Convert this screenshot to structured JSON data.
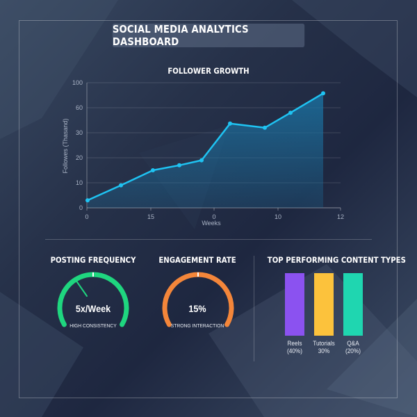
{
  "header": {
    "title": "SOCIAL MEDIA ANALYTICS DASHBOARD"
  },
  "chart_data": [
    {
      "type": "area",
      "title": "FOLLOWER GROWTH",
      "xlabel": "Weeks",
      "ylabel": "Followes (Thasand)",
      "x_tick_labels": [
        "0",
        "15",
        "0",
        "10",
        "12"
      ],
      "y_ticks": [
        0,
        10,
        20,
        30,
        60,
        100
      ],
      "ylim": [
        0,
        100
      ],
      "grid": true,
      "series": [
        {
          "values": [
            3,
            9,
            15,
            17,
            19,
            41,
            36,
            54,
            83
          ]
        }
      ],
      "colors": {
        "line": "#1fc3f2",
        "fill": "#1b6f9e"
      }
    },
    {
      "type": "bar",
      "title": "TOP PERFORMING CONTENT TYPES",
      "categories": [
        "Reels",
        "Tutorials",
        "Q&A"
      ],
      "category_sublabels": [
        "(40%)",
        "30%",
        "(20%)"
      ],
      "values": [
        40,
        30,
        20
      ],
      "colors": [
        "#8b52f0",
        "#fcc23c",
        "#1fd6b0"
      ]
    }
  ],
  "gauges": [
    {
      "title": "POSTING FREQUENCY",
      "value": "5x/Week",
      "caption": "HIGH CONSISTENCY",
      "color": "#1fd67f",
      "needle_fraction": 0.3
    },
    {
      "title": "ENGAGEMENT RATE",
      "value": "15%",
      "caption": "STRONG INTERACTION",
      "color": "#f4863a",
      "needle_fraction": 0.5
    }
  ]
}
